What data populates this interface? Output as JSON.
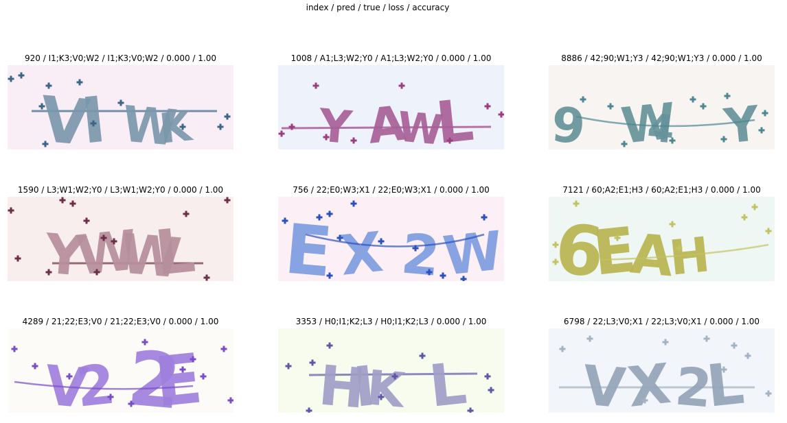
{
  "figure": {
    "suptitle": "index / pred / true / loss / accuracy"
  },
  "samples": [
    {
      "title": "920 / I1;K3;V0;W2 / I1;K3;V0;W2 / 0.000 / 1.00",
      "captcha_text": "VIWK",
      "bg": "#f9eef6",
      "ink": "#7b97ab",
      "dot": "#3d6585"
    },
    {
      "title": "1008 / A1;L3;W2;Y0 / A1;L3;W2;Y0 / 0.000 / 1.00",
      "captcha_text": "YAWL",
      "bg": "#eef2fa",
      "ink": "#a75f97",
      "dot": "#9b3d7f"
    },
    {
      "title": "8886 / 42;90;W1;Y3 / 42;90;W1;Y3 / 0.000 / 1.00",
      "captcha_text": "9 W4 Y",
      "bg": "#f7f4f2",
      "ink": "#65929a",
      "dot": "#4f8791"
    },
    {
      "title": "1590 / L3;W1;W2;Y0 / L3;W1;W2;Y0 / 0.000 / 1.00",
      "captcha_text": "YWWL",
      "bg": "#f9eeee",
      "ink": "#b58e9b",
      "dot": "#6d2f48"
    },
    {
      "title": "756 / 22;E0;W3;X1 / 22;E0;W3;X1 / 0.000 / 1.00",
      "captcha_text": "EX 2W",
      "bg": "#fcf0f6",
      "ink": "#7e9ce0",
      "dot": "#2b4fc0"
    },
    {
      "title": "7121 / 60;A2;E1;H3 / 60;A2;E1;H3 / 0.000 / 1.00",
      "captcha_text": "6EAH",
      "bg": "#eff7f4",
      "ink": "#b8b34f",
      "dot": "#c4c260"
    },
    {
      "title": "4289 / 21;22;E3;V0 / 21;22;E3;V0 / 0.000 / 1.00",
      "captcha_text": "V2 2E",
      "bg": "#fcfbf8",
      "ink": "#a07fdc",
      "dot": "#7a4ccc"
    },
    {
      "title": "3353 / H0;I1;K2;L3 / H0;I1;K2;L3 / 0.000 / 1.00",
      "captcha_text": "HIK L",
      "bg": "#f7fcef",
      "ink": "#a09dc6",
      "dot": "#5d57a5"
    },
    {
      "title": "6798 / 22;L3;V0;X1 / 22;L3;V0;X1 / 0.000 / 1.00",
      "captcha_text": "VX 2L",
      "bg": "#f2f6fa",
      "ink": "#94a3b6",
      "dot": "#a4b2c4"
    }
  ]
}
